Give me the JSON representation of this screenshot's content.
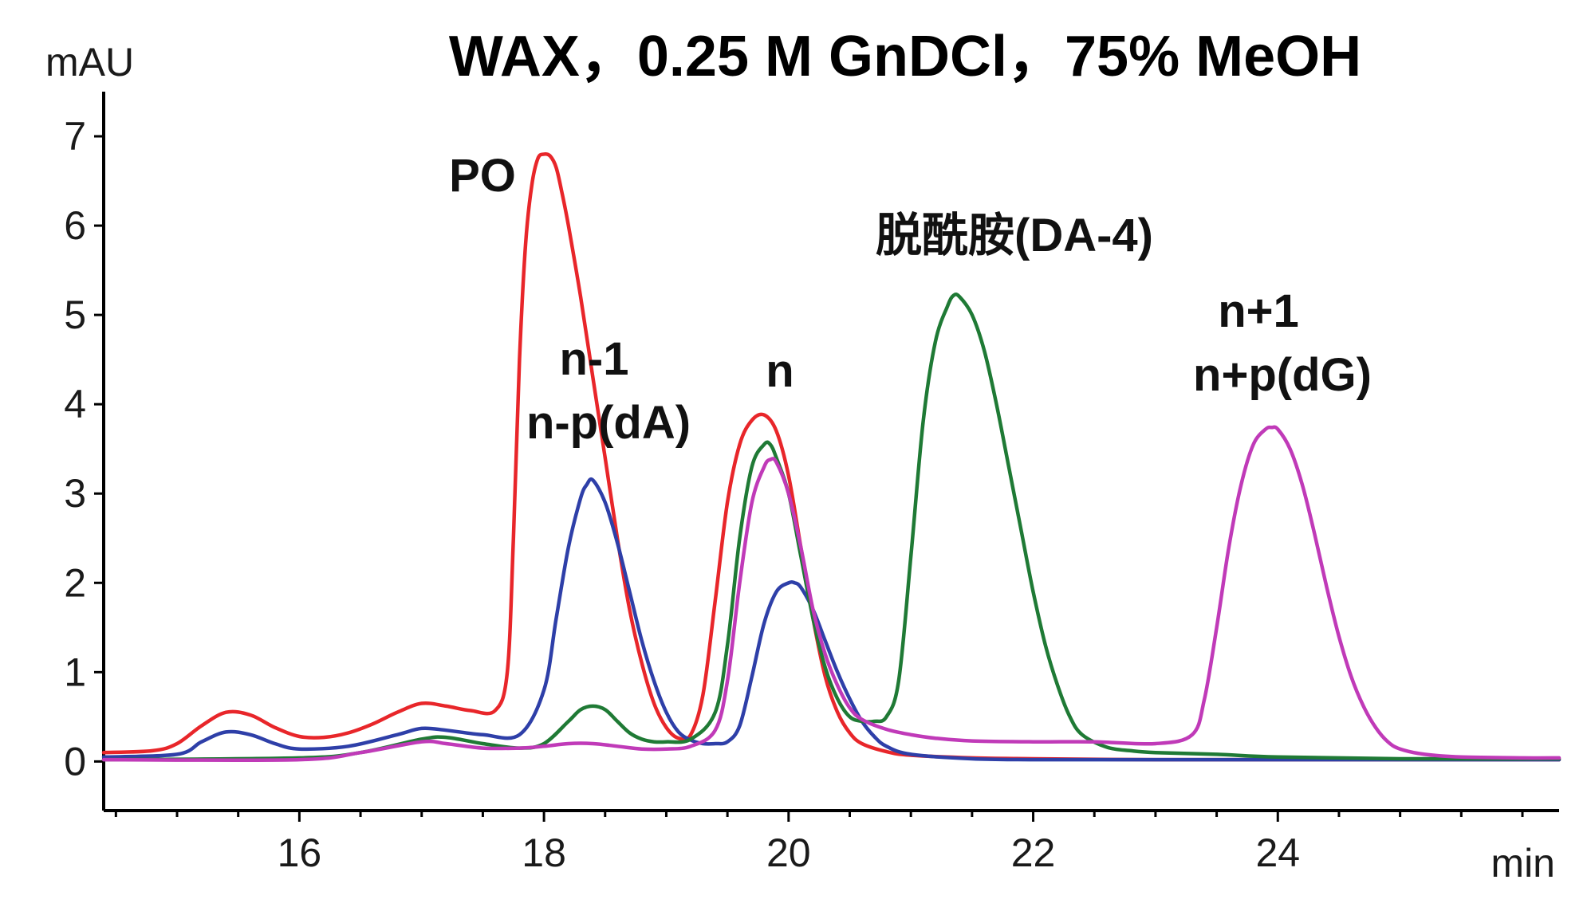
{
  "chart_data": {
    "type": "line",
    "title": "WAX，0.25 M GnDCl，75% MeOH",
    "y_unit_label": "mAU",
    "x_unit_label": "min",
    "xlim": [
      14.4,
      26.3
    ],
    "ylim": [
      -0.55,
      7.5
    ],
    "x_ticks": [
      16,
      18,
      20,
      22,
      24
    ],
    "y_ticks": [
      0,
      1,
      2,
      3,
      4,
      5,
      6,
      7
    ],
    "grid": false,
    "series": [
      {
        "color": "#e8262a",
        "x": [
          14.4,
          14.8,
          15.0,
          15.2,
          15.4,
          15.6,
          15.8,
          16.0,
          16.2,
          16.4,
          16.6,
          16.8,
          17.0,
          17.2,
          17.4,
          17.6,
          17.7,
          17.75,
          17.8,
          17.85,
          17.9,
          17.95,
          18.0,
          18.05,
          18.1,
          18.15,
          18.2,
          18.3,
          18.4,
          18.5,
          18.6,
          18.7,
          18.8,
          18.9,
          19.0,
          19.1,
          19.2,
          19.3,
          19.4,
          19.5,
          19.6,
          19.7,
          19.8,
          19.9,
          20.0,
          20.1,
          20.2,
          20.3,
          20.4,
          20.5,
          20.6,
          20.8,
          21.0,
          21.5,
          22.0,
          23.0,
          24.0,
          25.0,
          26.3
        ],
        "y": [
          0.1,
          0.12,
          0.2,
          0.4,
          0.55,
          0.52,
          0.38,
          0.28,
          0.27,
          0.32,
          0.42,
          0.55,
          0.65,
          0.62,
          0.57,
          0.57,
          1.0,
          2.5,
          4.5,
          5.8,
          6.45,
          6.75,
          6.8,
          6.78,
          6.65,
          6.35,
          6.0,
          5.2,
          4.3,
          3.4,
          2.5,
          1.7,
          1.1,
          0.65,
          0.38,
          0.26,
          0.3,
          0.75,
          1.8,
          2.9,
          3.55,
          3.82,
          3.88,
          3.7,
          3.2,
          2.4,
          1.6,
          0.95,
          0.55,
          0.32,
          0.2,
          0.11,
          0.07,
          0.04,
          0.03,
          0.02,
          0.02,
          0.02,
          0.02
        ]
      },
      {
        "color": "#2e3fa8",
        "x": [
          14.4,
          15.0,
          15.2,
          15.4,
          15.6,
          15.8,
          16.0,
          16.4,
          16.8,
          17.0,
          17.2,
          17.5,
          17.8,
          18.0,
          18.1,
          18.2,
          18.3,
          18.35,
          18.4,
          18.5,
          18.6,
          18.7,
          18.8,
          18.9,
          19.0,
          19.1,
          19.2,
          19.3,
          19.4,
          19.5,
          19.6,
          19.7,
          19.8,
          19.9,
          20.0,
          20.05,
          20.1,
          20.2,
          20.3,
          20.4,
          20.5,
          20.6,
          20.7,
          20.8,
          21.0,
          21.5,
          22.0,
          23.0,
          24.0,
          25.0,
          26.3
        ],
        "y": [
          0.05,
          0.08,
          0.22,
          0.33,
          0.3,
          0.2,
          0.14,
          0.17,
          0.3,
          0.37,
          0.35,
          0.3,
          0.3,
          0.8,
          1.6,
          2.4,
          2.95,
          3.1,
          3.15,
          2.9,
          2.45,
          1.9,
          1.35,
          0.9,
          0.55,
          0.33,
          0.24,
          0.2,
          0.2,
          0.22,
          0.4,
          0.95,
          1.55,
          1.9,
          2.0,
          2.0,
          1.95,
          1.7,
          1.35,
          1.0,
          0.7,
          0.45,
          0.28,
          0.17,
          0.08,
          0.03,
          0.02,
          0.02,
          0.02,
          0.02,
          0.02
        ]
      },
      {
        "color": "#1f7a35",
        "x": [
          14.4,
          16.0,
          16.5,
          17.0,
          17.2,
          17.5,
          17.8,
          18.0,
          18.2,
          18.3,
          18.4,
          18.5,
          18.6,
          18.7,
          18.8,
          18.9,
          19.0,
          19.2,
          19.4,
          19.5,
          19.6,
          19.7,
          19.8,
          19.85,
          19.9,
          20.0,
          20.1,
          20.2,
          20.3,
          20.4,
          20.5,
          20.6,
          20.7,
          20.8,
          20.9,
          21.0,
          21.1,
          21.2,
          21.3,
          21.35,
          21.4,
          21.5,
          21.6,
          21.7,
          21.8,
          21.9,
          22.0,
          22.1,
          22.2,
          22.3,
          22.4,
          22.6,
          22.8,
          23.0,
          23.5,
          24.0,
          25.0,
          26.3
        ],
        "y": [
          0.02,
          0.04,
          0.1,
          0.25,
          0.27,
          0.2,
          0.15,
          0.2,
          0.45,
          0.58,
          0.62,
          0.58,
          0.45,
          0.32,
          0.25,
          0.22,
          0.22,
          0.25,
          0.55,
          1.3,
          2.5,
          3.3,
          3.55,
          3.55,
          3.4,
          3.0,
          2.3,
          1.6,
          1.05,
          0.7,
          0.5,
          0.45,
          0.45,
          0.5,
          0.9,
          2.3,
          3.8,
          4.7,
          5.1,
          5.22,
          5.2,
          5.0,
          4.6,
          4.0,
          3.3,
          2.6,
          1.9,
          1.3,
          0.85,
          0.5,
          0.3,
          0.16,
          0.12,
          0.1,
          0.08,
          0.05,
          0.03,
          0.03
        ]
      },
      {
        "color": "#c03ab8",
        "x": [
          14.4,
          16.0,
          16.5,
          17.0,
          17.2,
          17.5,
          17.8,
          18.0,
          18.2,
          18.4,
          18.6,
          18.8,
          19.0,
          19.2,
          19.4,
          19.5,
          19.6,
          19.7,
          19.8,
          19.85,
          19.9,
          20.0,
          20.1,
          20.2,
          20.3,
          20.4,
          20.5,
          20.6,
          20.8,
          21.0,
          21.2,
          21.5,
          22.0,
          22.5,
          23.0,
          23.3,
          23.4,
          23.5,
          23.6,
          23.7,
          23.8,
          23.9,
          23.95,
          24.0,
          24.1,
          24.2,
          24.3,
          24.4,
          24.5,
          24.6,
          24.7,
          24.8,
          24.9,
          25.0,
          25.2,
          25.5,
          26.0,
          26.3
        ],
        "y": [
          0.02,
          0.02,
          0.1,
          0.22,
          0.2,
          0.15,
          0.15,
          0.17,
          0.2,
          0.2,
          0.17,
          0.14,
          0.14,
          0.17,
          0.35,
          0.9,
          2.0,
          2.9,
          3.3,
          3.38,
          3.35,
          3.0,
          2.4,
          1.7,
          1.2,
          0.85,
          0.6,
          0.47,
          0.36,
          0.3,
          0.26,
          0.23,
          0.22,
          0.22,
          0.2,
          0.3,
          0.7,
          1.5,
          2.4,
          3.1,
          3.55,
          3.72,
          3.74,
          3.72,
          3.5,
          3.1,
          2.55,
          1.95,
          1.4,
          0.95,
          0.62,
          0.38,
          0.22,
          0.14,
          0.08,
          0.05,
          0.04,
          0.04
        ]
      }
    ],
    "annotations": {
      "po": "PO",
      "n_minus_1": "n-1",
      "n_minus_p": "n-p(dA)",
      "n": "n",
      "deamidation": "脱酰胺(DA-4)",
      "n_plus_1": "n+1",
      "n_plus_p": "n+p(dG)"
    }
  }
}
